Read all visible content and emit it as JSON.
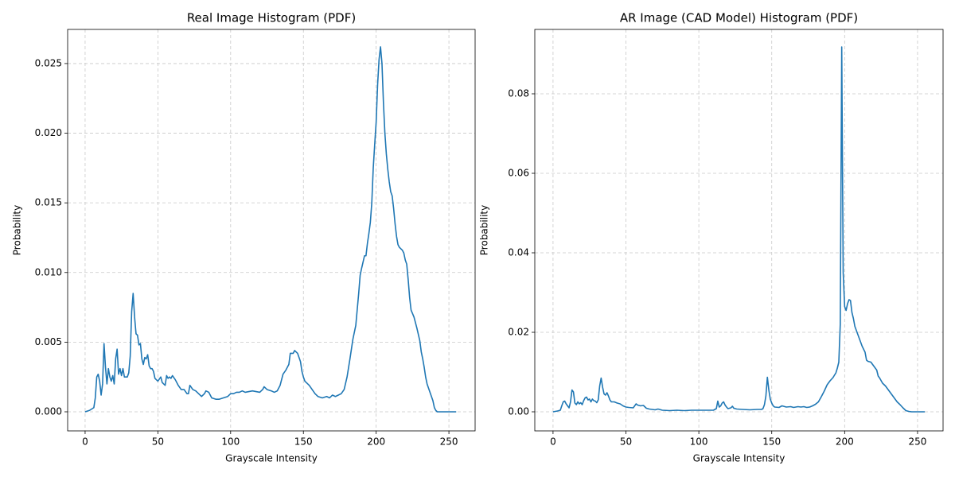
{
  "chart_data": [
    {
      "type": "line",
      "title": "Real Image Histogram (PDF)",
      "x_label": "Grayscale Intensity",
      "y_label": "Probability",
      "xlim": [
        -12,
        268
      ],
      "ylim": [
        -0.00137,
        0.02745
      ],
      "xticks": [
        0,
        50,
        100,
        150,
        200,
        250
      ],
      "yticks": [
        {
          "value": 0,
          "label": "0.000"
        },
        {
          "value": 0.005,
          "label": "0.005"
        },
        {
          "value": 0.01,
          "label": "0.010"
        },
        {
          "value": 0.015,
          "label": "0.015"
        },
        {
          "value": 0.02,
          "label": "0.020"
        },
        {
          "value": 0.025,
          "label": "0.025"
        }
      ],
      "grid": true,
      "color": "#1f77b4",
      "x": [
        0,
        3,
        6,
        7,
        8,
        9,
        10,
        11,
        12,
        13,
        14,
        15,
        16,
        17,
        18,
        19,
        20,
        21,
        22,
        23,
        24,
        25,
        26,
        27,
        29,
        30,
        31,
        32,
        33,
        34,
        35,
        36,
        37,
        38,
        39,
        40,
        41,
        42,
        43,
        44,
        45,
        46,
        47,
        48,
        50,
        52,
        53,
        55,
        56,
        57,
        58,
        59,
        60,
        62,
        64,
        66,
        68,
        70,
        71,
        72,
        74,
        76,
        78,
        80,
        82,
        83,
        85,
        87,
        90,
        92,
        95,
        98,
        100,
        102,
        104,
        106,
        108,
        110,
        115,
        120,
        122,
        123,
        125,
        128,
        130,
        132,
        134,
        136,
        138,
        140,
        141,
        142,
        143,
        144,
        146,
        148,
        149,
        150,
        151,
        152,
        154,
        156,
        158,
        160,
        163,
        166,
        168,
        170,
        172,
        174,
        176,
        178,
        180,
        182,
        184,
        186,
        188,
        189,
        190,
        192,
        193,
        194,
        195,
        196,
        197,
        198,
        199,
        200,
        201,
        202,
        203,
        204,
        205,
        206,
        207,
        208,
        209,
        210,
        211,
        212,
        213,
        214,
        215,
        216,
        218,
        219,
        220,
        221,
        222,
        223,
        224,
        226,
        228,
        230,
        231,
        232,
        233,
        234,
        235,
        237,
        239,
        240,
        241,
        242,
        245,
        250,
        255
      ],
      "values": [
        0,
        0.0001,
        0.0003,
        0.001,
        0.0025,
        0.0027,
        0.0022,
        0.0012,
        0.002,
        0.0049,
        0.0032,
        0.002,
        0.0031,
        0.0025,
        0.0022,
        0.0026,
        0.002,
        0.0038,
        0.0045,
        0.0027,
        0.0031,
        0.0026,
        0.0031,
        0.0025,
        0.0025,
        0.0028,
        0.004,
        0.0072,
        0.0085,
        0.0068,
        0.0056,
        0.0055,
        0.0048,
        0.0049,
        0.0038,
        0.0034,
        0.0039,
        0.0038,
        0.0041,
        0.0033,
        0.0031,
        0.0031,
        0.0029,
        0.0024,
        0.0022,
        0.0025,
        0.0021,
        0.0019,
        0.0026,
        0.0024,
        0.0025,
        0.0024,
        0.0026,
        0.0023,
        0.0019,
        0.0016,
        0.0016,
        0.0013,
        0.0013,
        0.0019,
        0.0016,
        0.0015,
        0.0013,
        0.0011,
        0.0013,
        0.0015,
        0.0014,
        0.001,
        0.0009,
        0.0009,
        0.001,
        0.0011,
        0.0013,
        0.0013,
        0.0014,
        0.0014,
        0.0015,
        0.0014,
        0.0015,
        0.0014,
        0.0016,
        0.0018,
        0.0016,
        0.0015,
        0.0014,
        0.0015,
        0.0019,
        0.0027,
        0.003,
        0.0034,
        0.0042,
        0.0042,
        0.0042,
        0.0044,
        0.0042,
        0.0036,
        0.0029,
        0.0025,
        0.0022,
        0.0021,
        0.0019,
        0.0016,
        0.0013,
        0.0011,
        0.001,
        0.0011,
        0.001,
        0.0012,
        0.0011,
        0.0012,
        0.0013,
        0.0016,
        0.0025,
        0.0038,
        0.0052,
        0.0062,
        0.0085,
        0.0098,
        0.0103,
        0.0112,
        0.0112,
        0.0121,
        0.0128,
        0.0136,
        0.015,
        0.0175,
        0.0192,
        0.0208,
        0.0235,
        0.0253,
        0.0262,
        0.025,
        0.0222,
        0.02,
        0.0185,
        0.0174,
        0.0165,
        0.0158,
        0.0155,
        0.0146,
        0.0135,
        0.0126,
        0.012,
        0.0118,
        0.0116,
        0.0114,
        0.0109,
        0.0106,
        0.0095,
        0.0082,
        0.0073,
        0.0068,
        0.006,
        0.0051,
        0.0043,
        0.0038,
        0.0032,
        0.0025,
        0.002,
        0.0014,
        0.0008,
        0.0003,
        0.0001,
        0,
        0,
        0,
        0
      ]
    },
    {
      "type": "line",
      "title": "AR Image (CAD Model) Histogram (PDF)",
      "x_label": "Grayscale Intensity",
      "y_label": "Probability",
      "xlim": [
        -12.5,
        267.5
      ],
      "ylim": [
        -0.0048,
        0.0962
      ],
      "xticks": [
        0,
        50,
        100,
        150,
        200,
        250
      ],
      "yticks": [
        {
          "value": 0,
          "label": "0.00"
        },
        {
          "value": 0.02,
          "label": "0.02"
        },
        {
          "value": 0.04,
          "label": "0.04"
        },
        {
          "value": 0.06,
          "label": "0.06"
        },
        {
          "value": 0.08,
          "label": "0.08"
        }
      ],
      "grid": true,
      "color": "#1f77b4",
      "x": [
        0,
        3,
        5,
        6,
        7,
        8,
        9,
        10,
        11,
        12,
        13,
        14,
        15,
        16,
        17,
        18,
        19,
        20,
        21,
        22,
        23,
        24,
        25,
        26,
        27,
        28,
        29,
        30,
        31,
        32,
        33,
        34,
        35,
        36,
        37,
        38,
        39,
        40,
        42,
        44,
        46,
        48,
        50,
        52,
        55,
        56,
        57,
        58,
        60,
        62,
        64,
        66,
        68,
        70,
        72,
        75,
        80,
        85,
        90,
        95,
        100,
        105,
        110,
        112,
        113,
        114,
        115,
        116,
        117,
        118,
        119,
        120,
        122,
        123,
        124,
        126,
        130,
        135,
        140,
        143,
        144,
        145,
        146,
        147,
        148,
        149,
        150,
        151,
        152,
        155,
        157,
        160,
        163,
        165,
        168,
        170,
        172,
        174,
        176,
        178,
        180,
        182,
        184,
        186,
        188,
        190,
        192,
        194,
        195,
        196,
        197,
        198,
        199,
        200,
        201,
        202,
        203,
        204,
        205,
        206,
        207,
        208,
        210,
        212,
        214,
        215,
        216,
        218,
        220,
        222,
        223,
        224,
        226,
        228,
        230,
        232,
        234,
        236,
        238,
        240,
        242,
        244,
        246,
        250,
        255
      ],
      "values": [
        0,
        0.0002,
        0.0004,
        0.0015,
        0.0025,
        0.0027,
        0.002,
        0.0015,
        0.001,
        0.0025,
        0.0055,
        0.005,
        0.0022,
        0.0018,
        0.0025,
        0.002,
        0.0023,
        0.0018,
        0.0028,
        0.0035,
        0.0037,
        0.003,
        0.0032,
        0.0025,
        0.0032,
        0.0028,
        0.0027,
        0.0023,
        0.003,
        0.0065,
        0.0085,
        0.0062,
        0.0045,
        0.0042,
        0.0048,
        0.004,
        0.003,
        0.0025,
        0.0025,
        0.0022,
        0.002,
        0.0015,
        0.0012,
        0.0011,
        0.001,
        0.0015,
        0.002,
        0.0017,
        0.0015,
        0.0016,
        0.0009,
        0.0007,
        0.0006,
        0.0005,
        0.0007,
        0.0004,
        0.0003,
        0.0004,
        0.0003,
        0.0004,
        0.0004,
        0.0004,
        0.0004,
        0.0008,
        0.0027,
        0.0012,
        0.0015,
        0.0022,
        0.0025,
        0.0017,
        0.0012,
        0.0008,
        0.001,
        0.0014,
        0.0009,
        0.0007,
        0.0006,
        0.0005,
        0.0006,
        0.0006,
        0.0008,
        0.0018,
        0.004,
        0.0087,
        0.0055,
        0.0032,
        0.0022,
        0.0015,
        0.0012,
        0.0011,
        0.0015,
        0.0012,
        0.0013,
        0.0011,
        0.0013,
        0.0012,
        0.0013,
        0.0011,
        0.0012,
        0.0015,
        0.0019,
        0.0025,
        0.0038,
        0.0052,
        0.0068,
        0.0078,
        0.0086,
        0.0098,
        0.011,
        0.0125,
        0.022,
        0.0918,
        0.035,
        0.0265,
        0.0255,
        0.0272,
        0.0282,
        0.028,
        0.025,
        0.0235,
        0.0215,
        0.0205,
        0.0185,
        0.0165,
        0.015,
        0.013,
        0.0127,
        0.0125,
        0.0115,
        0.0105,
        0.009,
        0.0085,
        0.0072,
        0.0065,
        0.0055,
        0.0045,
        0.0035,
        0.0025,
        0.0018,
        0.001,
        0.0003,
        0.0001,
        0,
        0,
        0
      ]
    }
  ]
}
